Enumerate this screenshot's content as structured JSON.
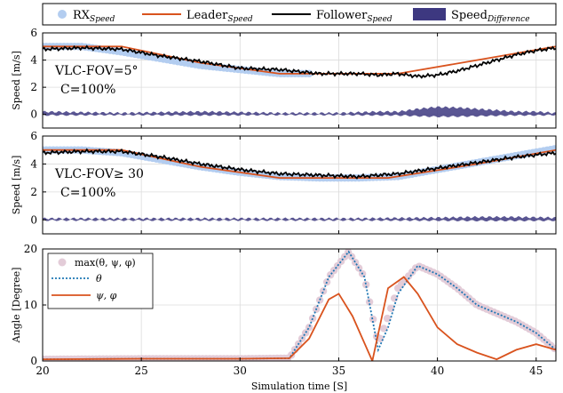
{
  "chart_data": [
    {
      "type": "line",
      "panel": "top",
      "annotation": [
        "VLC-FOV=5°",
        "C=100%"
      ],
      "xlabel": "",
      "ylabel": "Speed [m/s]",
      "xlim": [
        20,
        46
      ],
      "ylim": [
        -1,
        6
      ],
      "xticks": [
        20,
        25,
        30,
        35,
        40,
        45
      ],
      "yticks": [
        0,
        2,
        4,
        6
      ],
      "grid": true,
      "series": [
        {
          "name": "RX_Speed",
          "style": "markers",
          "color": "#b3cdf0",
          "x": [
            20,
            22,
            24,
            26,
            28,
            30,
            32,
            33.5
          ],
          "y": [
            5.0,
            5.0,
            4.6,
            4.1,
            3.6,
            3.3,
            3.0,
            3.0
          ]
        },
        {
          "name": "Leader_Speed",
          "style": "line",
          "color": "#d9531e",
          "x": [
            20,
            24,
            28,
            32,
            35,
            38,
            42,
            46
          ],
          "y": [
            5.0,
            5.0,
            3.8,
            3.0,
            3.0,
            3.0,
            4.0,
            5.0
          ]
        },
        {
          "name": "Follower_Speed",
          "style": "line",
          "color": "#000000",
          "x": [
            20,
            22,
            24,
            26,
            28,
            30,
            32,
            34,
            36,
            37,
            38,
            39,
            40,
            41,
            42,
            43,
            44,
            45,
            46
          ],
          "y": [
            4.8,
            4.9,
            4.8,
            4.3,
            3.9,
            3.4,
            3.3,
            3.0,
            3.0,
            2.9,
            3.0,
            2.8,
            2.9,
            3.2,
            3.6,
            4.0,
            4.4,
            4.7,
            4.9
          ]
        },
        {
          "name": "Speed_Difference",
          "style": "area",
          "color": "#3d3880",
          "x": [
            20,
            24,
            28,
            32,
            35,
            37,
            38,
            39,
            40,
            41,
            42,
            43,
            44,
            45,
            46
          ],
          "y": [
            0.2,
            0.1,
            0.2,
            0.1,
            0.1,
            0.2,
            0.2,
            0.4,
            0.55,
            0.5,
            0.4,
            0.3,
            0.2,
            0.2,
            0.1
          ]
        }
      ]
    },
    {
      "type": "line",
      "panel": "middle",
      "annotation": [
        "VLC-FOV≥ 30",
        "C=100%"
      ],
      "xlabel": "",
      "ylabel": "Speed [m/s]",
      "xlim": [
        20,
        46
      ],
      "ylim": [
        -1,
        6
      ],
      "xticks": [
        20,
        25,
        30,
        35,
        40,
        45
      ],
      "yticks": [
        0,
        2,
        4,
        6
      ],
      "grid": true,
      "series": [
        {
          "name": "RX_Speed",
          "style": "markers",
          "color": "#b3cdf0",
          "x": [
            20,
            22,
            24,
            26,
            28,
            30,
            32,
            34,
            36,
            38,
            40,
            42,
            44,
            46
          ],
          "y": [
            5.0,
            5.0,
            4.8,
            4.3,
            3.8,
            3.4,
            3.1,
            3.0,
            3.0,
            3.1,
            3.6,
            4.1,
            4.6,
            5.1
          ]
        },
        {
          "name": "Leader_Speed",
          "style": "line",
          "color": "#d9531e",
          "x": [
            20,
            24,
            28,
            32,
            35,
            37.5,
            42,
            46
          ],
          "y": [
            5.0,
            5.0,
            3.8,
            3.0,
            3.0,
            3.0,
            4.0,
            5.0
          ]
        },
        {
          "name": "Follower_Speed",
          "style": "line",
          "color": "#000000",
          "x": [
            20,
            22,
            24,
            26,
            28,
            30,
            32,
            34,
            36,
            38,
            40,
            42,
            44,
            46
          ],
          "y": [
            4.8,
            4.9,
            4.9,
            4.5,
            4.0,
            3.6,
            3.3,
            3.2,
            3.1,
            3.3,
            3.7,
            4.1,
            4.5,
            4.8
          ]
        },
        {
          "name": "Speed_Difference",
          "style": "area",
          "color": "#3d3880",
          "x": [
            20,
            24,
            28,
            32,
            36,
            40,
            42,
            44,
            46
          ],
          "y": [
            0.1,
            0.1,
            0.1,
            0.1,
            0.1,
            0.15,
            0.2,
            0.2,
            0.15
          ]
        }
      ]
    },
    {
      "type": "line",
      "panel": "bottom",
      "xlabel": "Simulation time [S]",
      "ylabel": "Angle [Degree]",
      "xlim": [
        20,
        46
      ],
      "ylim": [
        0,
        20
      ],
      "xticks": [
        20,
        25,
        30,
        35,
        40,
        45
      ],
      "yticks": [
        0,
        10,
        20
      ],
      "grid": true,
      "legend": {
        "position": "top-left",
        "entries": [
          "max(θ, ψ, φ)",
          "θ",
          "ψ, φ"
        ]
      },
      "series": [
        {
          "name": "max(θ, ψ, φ)",
          "style": "markers",
          "color": "#e3ccd8",
          "x": [
            20,
            25,
            30,
            32.5,
            33.5,
            34.5,
            35.5,
            36.3,
            37,
            38,
            39,
            40,
            41,
            42,
            43,
            44,
            45,
            46
          ],
          "y": [
            0.3,
            0.4,
            0.4,
            0.5,
            6,
            15,
            19.5,
            15,
            3,
            13,
            17,
            15.5,
            13,
            10,
            8.5,
            7,
            5,
            2
          ]
        },
        {
          "name": "θ",
          "style": "dotted",
          "color": "#1f77b4",
          "x": [
            20,
            25,
            30,
            32.5,
            33.5,
            34.5,
            35.5,
            36.3,
            37,
            37.5,
            38,
            39,
            40,
            41,
            42,
            43,
            44,
            45,
            46
          ],
          "y": [
            0.3,
            0.4,
            0.4,
            0.5,
            6,
            15,
            19.5,
            15,
            2,
            6,
            12,
            17,
            15.5,
            13,
            10,
            8.5,
            7,
            5,
            2
          ]
        },
        {
          "name": "ψ, φ",
          "style": "line",
          "color": "#d9531e",
          "x": [
            20,
            25,
            30,
            32.5,
            33.5,
            34.5,
            35,
            35.7,
            36.7,
            37.5,
            38.3,
            39,
            40,
            41,
            42,
            43,
            44,
            45,
            46
          ],
          "y": [
            0.3,
            0.4,
            0.4,
            0.5,
            4,
            11,
            12,
            8,
            0,
            13,
            15,
            12,
            6,
            3,
            1.5,
            0.3,
            2,
            3,
            2
          ]
        }
      ]
    }
  ],
  "legend_top": [
    {
      "base": "RX",
      "sub": "Speed"
    },
    {
      "base": "Leader",
      "sub": "Speed"
    },
    {
      "base": "Follower",
      "sub": "Speed"
    },
    {
      "base": "Speed",
      "sub": "Difference"
    }
  ]
}
